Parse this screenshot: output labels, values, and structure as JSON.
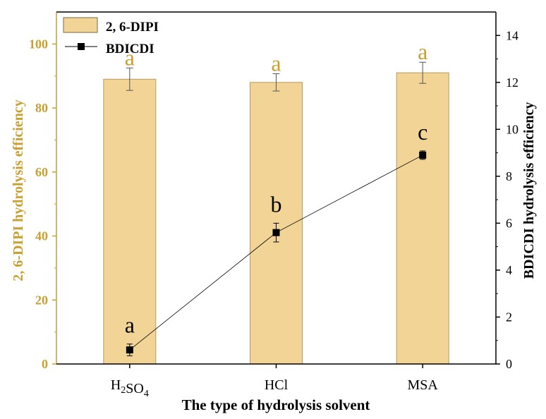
{
  "chart_data": {
    "type": "bar",
    "categories": [
      "H2SO4",
      "HCl",
      "MSA"
    ],
    "category_labels": [
      {
        "base": "H",
        "sub1": "2",
        "mid": "SO",
        "sub2": "4"
      },
      {
        "base": "HCl",
        "sub1": "",
        "mid": "",
        "sub2": ""
      },
      {
        "base": "MSA",
        "sub1": "",
        "mid": "",
        "sub2": ""
      }
    ],
    "xlabel": "The type of hydrolysis solvent",
    "ylabel_left": "2, 6-DIPI hydrolysis efficiency",
    "ylabel_right": "BDICDI  hydrolysis efficiency",
    "ylim_left": [
      0,
      110
    ],
    "yticks_left": [
      0,
      20,
      40,
      60,
      80,
      100
    ],
    "ylim_right": [
      0,
      15
    ],
    "yticks_right": [
      0,
      2,
      4,
      6,
      8,
      10,
      12,
      14
    ],
    "legend_position": "top-left",
    "grid": false,
    "series": [
      {
        "name": "2, 6-DIPI",
        "kind": "bar",
        "axis": "left",
        "values": [
          89.0,
          88.0,
          91.0
        ],
        "errors": [
          3.5,
          2.7,
          3.3
        ],
        "letters": [
          "a",
          "a",
          "a"
        ],
        "color": "#f2d596",
        "edge_color": "#b89a5a",
        "letter_color": "#c8a030"
      },
      {
        "name": "BDICDI",
        "kind": "line",
        "axis": "right",
        "values": [
          0.6,
          5.6,
          8.9
        ],
        "errors": [
          0.25,
          0.4,
          0.18
        ],
        "letters": [
          "a",
          "b",
          "c"
        ],
        "color": "#000000",
        "letter_color": "#000000"
      }
    ],
    "left_axis_color": "#c8a030",
    "right_axis_color": "#000000"
  }
}
